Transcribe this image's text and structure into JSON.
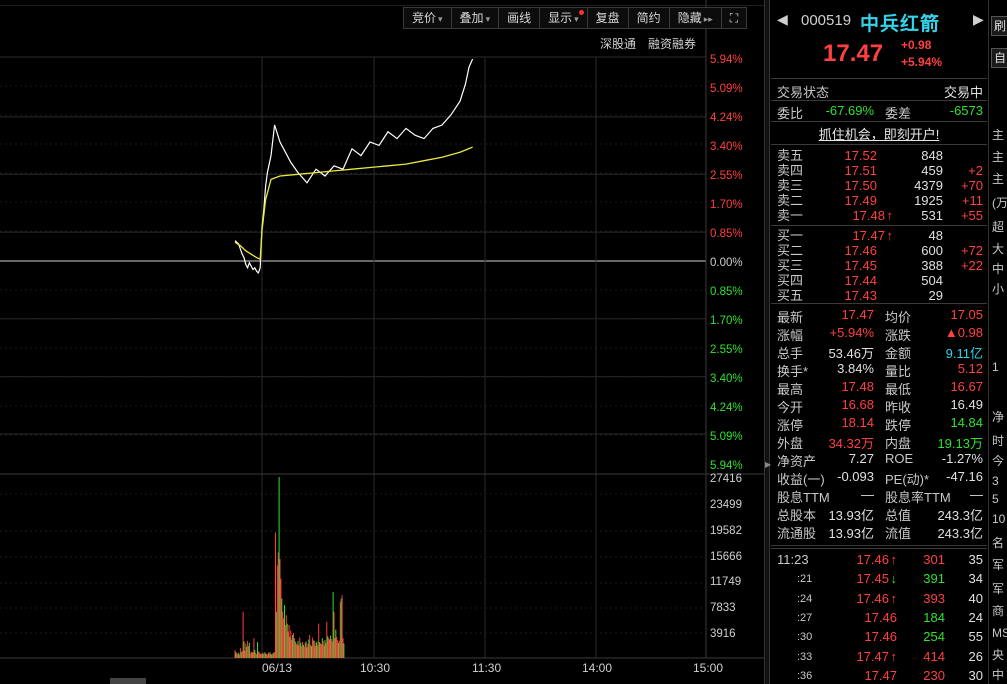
{
  "toolbar": {
    "buttons": [
      {
        "label": "竞价",
        "arrow": "▾"
      },
      {
        "label": "叠加",
        "arrow": "▾"
      },
      {
        "label": "画线"
      },
      {
        "label": "显示",
        "arrow": "▾"
      },
      {
        "label": "复盘"
      },
      {
        "label": "简约"
      },
      {
        "label": "隐藏",
        "arrow": "▸▸"
      }
    ],
    "expand_icon": "expand-icon"
  },
  "sublinks": [
    "深股通",
    "融资融券"
  ],
  "chart_data": [
    {
      "type": "line",
      "title": "",
      "y_right_labels": [
        "5.94%",
        "5.09%",
        "4.24%",
        "3.40%",
        "2.55%",
        "1.70%",
        "0.85%",
        "0.00%",
        "0.85%",
        "1.70%",
        "2.55%",
        "3.40%",
        "4.24%",
        "5.09%",
        "5.94%"
      ],
      "x_labels": [
        "06/13",
        "10:30",
        "11:30",
        "14:00",
        "15:00"
      ],
      "prev_close": 16.49,
      "ylim_pct": [
        -5.94,
        5.94
      ],
      "series": [
        {
          "name": "",
          "color": "#ffffff",
          "x": [
            -15,
            -14,
            -13,
            -12,
            -11,
            -10,
            -9,
            -8,
            -7,
            -6,
            -5,
            -4,
            -3,
            -2,
            -1,
            0,
            1,
            2,
            3,
            5,
            7,
            10,
            13,
            16,
            20,
            25,
            30,
            35,
            40,
            45,
            50,
            55,
            60,
            65,
            70,
            75,
            80,
            85,
            90,
            95,
            100,
            105,
            110,
            113,
            115,
            117
          ],
          "y_pct": [
            0.6,
            0.55,
            0.5,
            0.35,
            0.2,
            0.1,
            -0.1,
            -0.2,
            -0.05,
            -0.15,
            -0.25,
            -0.2,
            -0.3,
            -0.35,
            -0.2,
            1.0,
            1.5,
            2.2,
            2.6,
            3.1,
            4.0,
            3.5,
            3.2,
            2.9,
            2.6,
            2.3,
            2.7,
            2.5,
            2.8,
            2.7,
            3.3,
            3.1,
            3.5,
            3.4,
            3.8,
            3.6,
            3.9,
            3.7,
            3.6,
            3.9,
            4.0,
            4.3,
            4.7,
            5.2,
            5.7,
            5.94
          ]
        },
        {
          "name": "",
          "color": "#e8e840",
          "x": [
            -15,
            -12,
            -9,
            -6,
            -3,
            -1,
            0,
            2,
            5,
            10,
            20,
            30,
            40,
            50,
            60,
            70,
            80,
            90,
            100,
            110,
            117
          ],
          "y_pct": [
            0.55,
            0.45,
            0.3,
            0.2,
            0.1,
            0.05,
            0.9,
            1.8,
            2.4,
            2.5,
            2.55,
            2.6,
            2.65,
            2.7,
            2.75,
            2.8,
            2.85,
            2.95,
            3.05,
            3.2,
            3.35
          ]
        }
      ]
    },
    {
      "type": "bar",
      "title": "",
      "y_right_labels": [
        "27416",
        "23499",
        "19582",
        "15666",
        "11749",
        "7833",
        "3916"
      ],
      "ylim": [
        0,
        27416
      ],
      "x_start": -15,
      "values": [
        1200,
        900,
        700,
        600,
        800,
        500,
        1500,
        900,
        1100,
        7000,
        2500,
        1100,
        2200,
        1700,
        2600,
        1800,
        2300,
        700,
        1000,
        800,
        900,
        3000,
        1200,
        800,
        600,
        2400,
        1000,
        900,
        600,
        700,
        500,
        800,
        600,
        900,
        700,
        600,
        500,
        800,
        700,
        900,
        600,
        500,
        700,
        800,
        900,
        19000,
        7000,
        14000,
        16000,
        27416,
        15000,
        12000,
        9000,
        7000,
        6000,
        8000,
        5000,
        6500,
        5200,
        4000,
        5000,
        3200,
        4200,
        2800,
        3500,
        3800,
        3000,
        2500,
        2200,
        2000,
        2600,
        1900,
        3100,
        2300,
        1800,
        2400,
        2000,
        1700,
        2300,
        2500,
        1600,
        2100,
        2800,
        3500,
        2000,
        1800,
        3100,
        2700,
        2600,
        1800,
        2300,
        2500,
        1900,
        5200,
        2400,
        2200,
        2100,
        3000,
        2600,
        1900,
        2700,
        2300,
        5500,
        3300,
        3000,
        2800,
        3400,
        2900,
        2500,
        10000,
        7000,
        3000,
        4300,
        3200,
        2700,
        2300,
        2600,
        8500,
        9000,
        9500,
        3000,
        2200
      ],
      "colors_updown": "red=up, green=down"
    }
  ],
  "quote": {
    "code": "000519",
    "name": "中兵红箭",
    "price": "17.47",
    "change": "+0.98",
    "change_pct": "+5.94%",
    "status_label": "交易状态",
    "status_value": "交易中",
    "weibi_label": "委比",
    "weibi_value": "-67.69%",
    "weicha_label": "委差",
    "weicha_value": "-6573",
    "promo": "抓住机会，即刻开户!",
    "asks": [
      {
        "label": "卖五",
        "price": "17.52",
        "vol": "848",
        "delta": ""
      },
      {
        "label": "卖四",
        "price": "17.51",
        "vol": "459",
        "delta": "+2"
      },
      {
        "label": "卖三",
        "price": "17.50",
        "vol": "4379",
        "delta": "+70"
      },
      {
        "label": "卖二",
        "price": "17.49",
        "vol": "1925",
        "delta": "+11"
      },
      {
        "label": "卖一",
        "price": "17.48",
        "arrow": "↑",
        "vol": "531",
        "delta": "+55"
      }
    ],
    "bids": [
      {
        "label": "买一",
        "price": "17.47",
        "arrow": "↑",
        "vol": "48",
        "delta": ""
      },
      {
        "label": "买二",
        "price": "17.46",
        "vol": "600",
        "delta": "+72"
      },
      {
        "label": "买三",
        "price": "17.45",
        "vol": "388",
        "delta": "+22"
      },
      {
        "label": "买四",
        "price": "17.44",
        "vol": "504",
        "delta": ""
      },
      {
        "label": "买五",
        "price": "17.43",
        "vol": "29",
        "delta": ""
      }
    ],
    "stats": [
      {
        "l1": "最新",
        "v1": "17.47",
        "c1": "red",
        "l2": "均价",
        "v2": "17.05",
        "c2": "red"
      },
      {
        "l1": "涨幅",
        "v1": "+5.94%",
        "c1": "red",
        "l2": "涨跌",
        "v2": "▲0.98",
        "c2": "red"
      },
      {
        "l1": "总手",
        "v1": "53.46万",
        "c1": "white",
        "l2": "金额",
        "v2": "9.11亿",
        "c2": "cyan"
      },
      {
        "l1": "换手*",
        "v1": "3.84%",
        "c1": "white",
        "l2": "量比",
        "v2": "5.12",
        "c2": "red"
      },
      {
        "l1": "最高",
        "v1": "17.48",
        "c1": "red",
        "l2": "最低",
        "v2": "16.67",
        "c2": "red"
      },
      {
        "l1": "今开",
        "v1": "16.68",
        "c1": "red",
        "l2": "昨收",
        "v2": "16.49",
        "c2": "white"
      },
      {
        "l1": "涨停",
        "v1": "18.14",
        "c1": "red",
        "l2": "跌停",
        "v2": "14.84",
        "c2": "green"
      },
      {
        "l1": "外盘",
        "v1": "34.32万",
        "c1": "red",
        "l2": "内盘",
        "v2": "19.13万",
        "c2": "green"
      },
      {
        "l1": "净资产",
        "v1": "7.27",
        "c1": "white",
        "l2": "ROE",
        "v2": "-1.27%",
        "c2": "white"
      },
      {
        "l1": "收益(一)",
        "v1": "-0.093",
        "c1": "white",
        "l2": "PE(动)*",
        "v2": "-47.16",
        "c2": "white"
      },
      {
        "l1": "股息TTM",
        "v1": "—",
        "c1": "white",
        "l2": "股息率TTM",
        "v2": "—",
        "c2": "white"
      },
      {
        "l1": "总股本",
        "v1": "13.93亿",
        "c1": "white",
        "l2": "总值",
        "v2": "243.3亿",
        "c2": "white"
      },
      {
        "l1": "流通股",
        "v1": "13.93亿",
        "c1": "white",
        "l2": "流值",
        "v2": "243.3亿",
        "c2": "white"
      }
    ],
    "ticks": [
      {
        "time": "11:23",
        "price": "17.46",
        "arrow": "↑",
        "vol": "301",
        "vcolor": "red",
        "cnt": "35"
      },
      {
        "time": ":21",
        "price": "17.45",
        "arrow": "↓",
        "vol": "391",
        "vcolor": "green",
        "cnt": "34"
      },
      {
        "time": ":24",
        "price": "17.46",
        "arrow": "↑",
        "vol": "393",
        "vcolor": "red",
        "cnt": "40"
      },
      {
        "time": ":27",
        "price": "17.46",
        "arrow": "",
        "vol": "184",
        "vcolor": "green",
        "cnt": "24"
      },
      {
        "time": ":30",
        "price": "17.46",
        "arrow": "",
        "vol": "254",
        "vcolor": "green",
        "cnt": "55"
      },
      {
        "time": ":33",
        "price": "17.47",
        "arrow": "↑",
        "vol": "414",
        "vcolor": "red",
        "cnt": "26"
      },
      {
        "time": ":36",
        "price": "17.47",
        "arrow": "",
        "vol": "230",
        "vcolor": "red",
        "cnt": "30"
      }
    ]
  },
  "far_right": [
    "主",
    "主",
    "主",
    "(万",
    "超",
    "大",
    "中",
    "小",
    "1",
    "净",
    "时",
    "今",
    "3",
    "5",
    "10",
    "名",
    "军",
    "军",
    "商",
    "MS",
    "央",
    "中"
  ],
  "far_right_buttons": [
    "刷",
    "自"
  ]
}
